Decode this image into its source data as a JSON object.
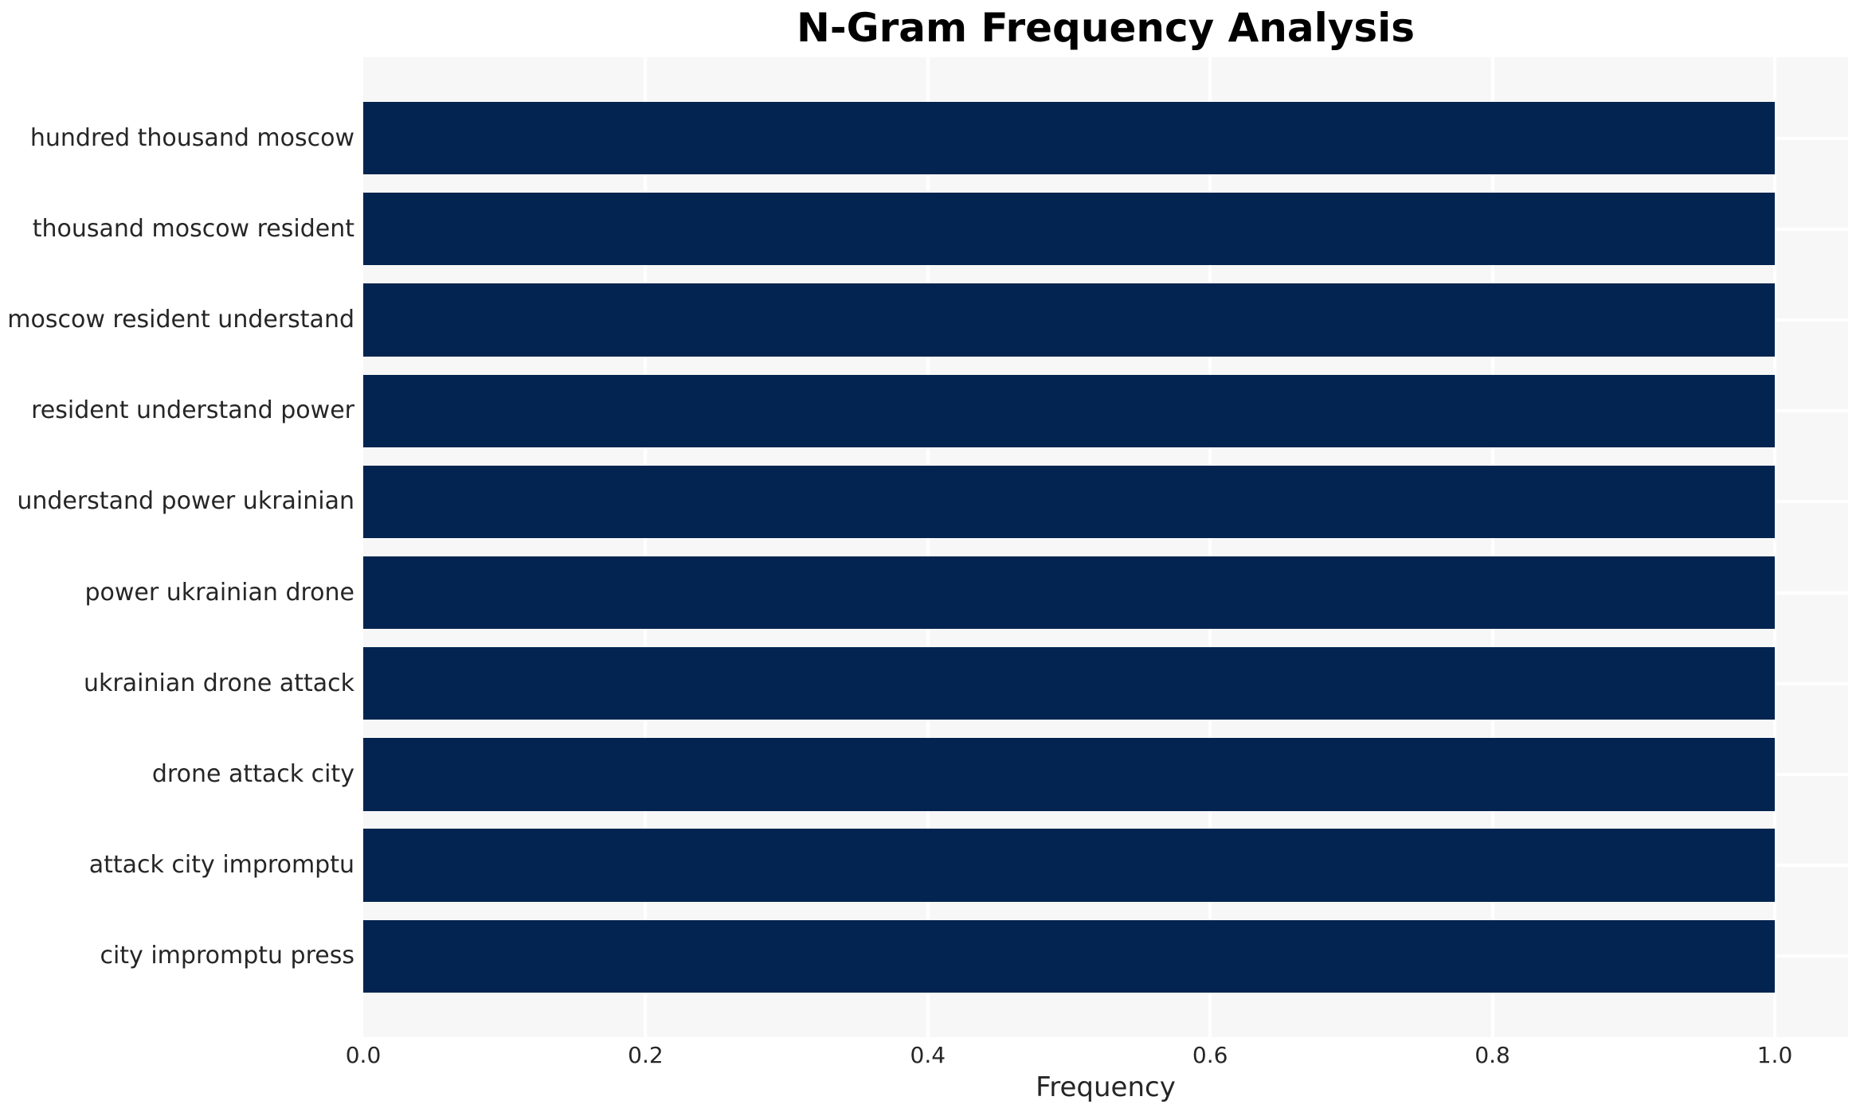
{
  "chart_data": {
    "type": "bar",
    "orientation": "horizontal",
    "title": "N-Gram Frequency Analysis",
    "xlabel": "Frequency",
    "ylabel": "",
    "categories": [
      "hundred thousand moscow",
      "thousand moscow resident",
      "moscow resident understand",
      "resident understand power",
      "understand power ukrainian",
      "power ukrainian drone",
      "ukrainian drone attack",
      "drone attack city",
      "attack city impromptu",
      "city impromptu press"
    ],
    "values": [
      1.0,
      1.0,
      1.0,
      1.0,
      1.0,
      1.0,
      1.0,
      1.0,
      1.0,
      1.0
    ],
    "xticks": [
      0.0,
      0.2,
      0.4,
      0.6,
      0.8,
      1.0
    ],
    "xtick_labels": [
      "0.0",
      "0.2",
      "0.4",
      "0.6",
      "0.8",
      "1.0"
    ],
    "xlim": [
      0,
      1.05
    ],
    "grid": true,
    "legend": "none",
    "colors": {
      "bar": "#032450",
      "plot_background": "#f7f7f7",
      "gridline": "#ffffff",
      "tick_text": "#262626",
      "title_text": "#000000"
    }
  }
}
